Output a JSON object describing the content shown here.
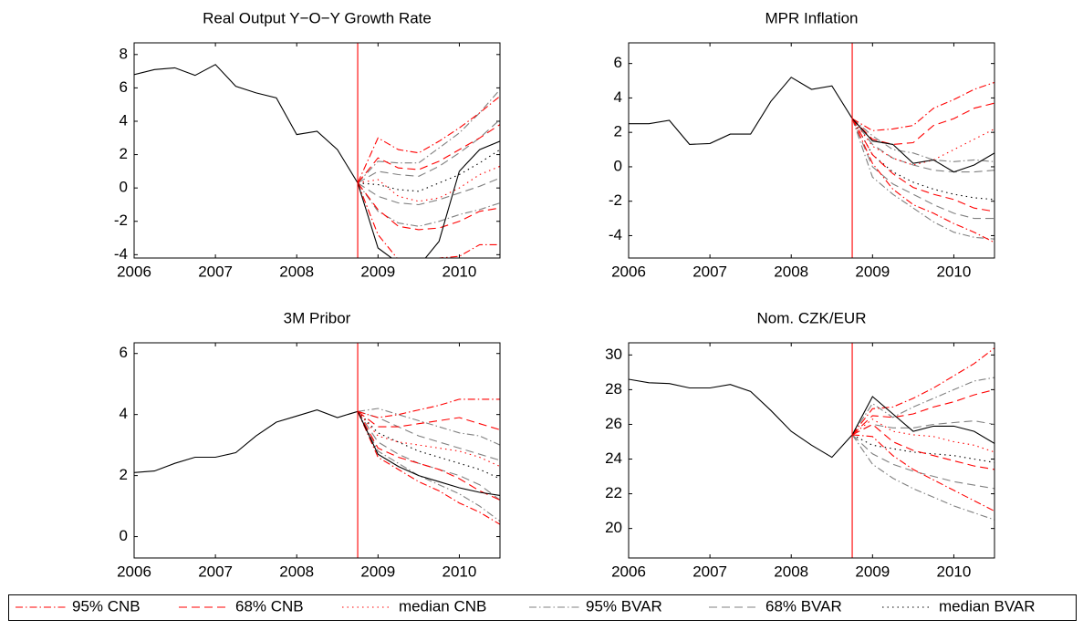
{
  "chart_data": [
    {
      "type": "line",
      "title": "Real Output Y−O−Y Growth Rate",
      "x": [
        2006,
        2006.25,
        2006.5,
        2006.75,
        2007,
        2007.25,
        2007.5,
        2007.75,
        2008,
        2008.25,
        2008.5,
        2008.75,
        2009,
        2009.25,
        2009.5,
        2009.75,
        2010,
        2010.25,
        2010.5
      ],
      "actual": [
        6.8,
        7.1,
        7.2,
        6.75,
        7.4,
        6.1,
        5.7,
        5.4,
        3.2,
        3.4,
        2.3,
        0.3,
        -3.6,
        -4.5,
        -4.7,
        -3.2,
        1.0,
        2.3,
        2.8
      ],
      "actual_color": "#000000",
      "forecast_start": 2008.75,
      "forecast_start_color": "#ff0000",
      "forecast_x": [
        2008.75,
        2009,
        2009.25,
        2009.5,
        2009.75,
        2010,
        2010.25,
        2010.5
      ],
      "forecasts": [
        {
          "upper": [
            0.3,
            3.0,
            2.3,
            2.1,
            2.8,
            3.6,
            4.5,
            5.5
          ],
          "lower": [
            0.3,
            -2.8,
            -4.3,
            -4.6,
            -4.2,
            -4.1,
            -3.4,
            -3.4
          ]
        },
        {
          "upper": [
            0.3,
            1.8,
            1.2,
            1.1,
            1.6,
            2.3,
            3.0,
            3.8
          ],
          "lower": [
            0.3,
            -1.3,
            -2.3,
            -2.5,
            -2.4,
            -2.0,
            -1.4,
            -1.2
          ]
        },
        {
          "values": [
            0.3,
            0.5,
            -0.5,
            -0.8,
            -0.6,
            0,
            0.8,
            1.3
          ]
        },
        {
          "upper": [
            0.3,
            1.6,
            1.5,
            1.5,
            2.4,
            3.3,
            4.5,
            5.9
          ],
          "lower": [
            0.3,
            -1.4,
            -2.1,
            -2.3,
            -2.0,
            -1.6,
            -1.3,
            -0.9
          ]
        },
        {
          "upper": [
            0.3,
            1.0,
            0.8,
            0.7,
            1.3,
            2.1,
            3.0,
            4.1
          ],
          "lower": [
            0.3,
            -0.5,
            -0.9,
            -1.0,
            -0.7,
            -0.3,
            0.1,
            0.6
          ]
        },
        {
          "values": [
            0.3,
            0.2,
            -0.1,
            -0.2,
            0.3,
            0.8,
            1.5,
            2.3
          ]
        }
      ],
      "xlim": [
        2006,
        2010.5
      ],
      "xticks": [
        2006,
        2007,
        2008,
        2009,
        2010
      ],
      "ylim": [
        -4.2,
        8.7
      ],
      "yticks": [
        -4,
        -2,
        0,
        2,
        4,
        6,
        8
      ]
    },
    {
      "type": "line",
      "title": "MPR Inflation",
      "x": [
        2006,
        2006.25,
        2006.5,
        2006.75,
        2007,
        2007.25,
        2007.5,
        2007.75,
        2008,
        2008.25,
        2008.5,
        2008.75,
        2009,
        2009.25,
        2009.5,
        2009.75,
        2010,
        2010.25,
        2010.5
      ],
      "actual": [
        2.5,
        2.5,
        2.7,
        1.3,
        1.35,
        1.9,
        1.9,
        3.8,
        5.2,
        4.5,
        4.7,
        2.8,
        1.5,
        1.3,
        0.2,
        0.4,
        -0.3,
        0.1,
        0.8
      ],
      "actual_color": "#000000",
      "forecast_start": 2008.75,
      "forecast_start_color": "#ff0000",
      "forecast_x": [
        2008.75,
        2009,
        2009.25,
        2009.5,
        2009.75,
        2010,
        2010.25,
        2010.5
      ],
      "forecasts": [
        {
          "upper": [
            2.8,
            2.1,
            2.2,
            2.4,
            3.4,
            3.9,
            4.5,
            4.9
          ],
          "lower": [
            2.8,
            0.2,
            -1.3,
            -2.2,
            -2.7,
            -3.3,
            -3.8,
            -4.4
          ]
        },
        {
          "upper": [
            2.8,
            1.6,
            1.3,
            1.4,
            2.4,
            2.8,
            3.4,
            3.7
          ],
          "lower": [
            2.8,
            0.7,
            -0.4,
            -1.2,
            -1.6,
            -1.9,
            -2.4,
            -2.6
          ]
        },
        {
          "values": [
            2.8,
            1.2,
            0.5,
            0.1,
            0.4,
            1.0,
            1.6,
            2.2
          ]
        },
        {
          "upper": [
            2.8,
            1.8,
            1.0,
            0.8,
            0.4,
            0.3,
            0.4,
            0.3
          ],
          "lower": [
            2.8,
            -0.6,
            -1.6,
            -2.4,
            -3.2,
            -3.8,
            -4.1,
            -4.2
          ]
        },
        {
          "upper": [
            2.8,
            1.3,
            0.5,
            0.1,
            -0.2,
            -0.3,
            -0.3,
            -0.2
          ],
          "lower": [
            2.8,
            0,
            -1.0,
            -1.6,
            -2.2,
            -2.7,
            -3.0,
            -3.0
          ]
        },
        {
          "values": [
            2.8,
            0.7,
            -0.3,
            -0.9,
            -1.3,
            -1.6,
            -1.8,
            -1.9
          ]
        }
      ],
      "xlim": [
        2006,
        2010.5
      ],
      "xticks": [
        2006,
        2007,
        2008,
        2009,
        2010
      ],
      "ylim": [
        -5.3,
        7.2
      ],
      "yticks": [
        -4,
        -2,
        0,
        2,
        4,
        6
      ]
    },
    {
      "type": "line",
      "title": "3M Pribor",
      "x": [
        2006,
        2006.25,
        2006.5,
        2006.75,
        2007,
        2007.25,
        2007.5,
        2007.75,
        2008,
        2008.25,
        2008.5,
        2008.75,
        2009,
        2009.25,
        2009.5,
        2009.75,
        2010,
        2010.25,
        2010.5
      ],
      "actual": [
        2.1,
        2.15,
        2.4,
        2.6,
        2.6,
        2.75,
        3.3,
        3.75,
        3.95,
        4.15,
        3.9,
        4.1,
        2.7,
        2.3,
        2.0,
        1.8,
        1.6,
        1.45,
        1.35
      ],
      "actual_color": "#000000",
      "forecast_start": 2008.75,
      "forecast_start_color": "#ff0000",
      "forecast_x": [
        2008.75,
        2009,
        2009.25,
        2009.5,
        2009.75,
        2010,
        2010.25,
        2010.5
      ],
      "forecasts": [
        {
          "upper": [
            4.1,
            3.9,
            4.0,
            4.15,
            4.3,
            4.5,
            4.5,
            4.5
          ],
          "lower": [
            4.1,
            2.6,
            2.2,
            1.8,
            1.5,
            1.1,
            0.8,
            0.4
          ]
        },
        {
          "upper": [
            4.1,
            3.6,
            3.6,
            3.7,
            3.8,
            3.9,
            3.7,
            3.5
          ],
          "lower": [
            4.1,
            2.9,
            2.6,
            2.4,
            2.2,
            1.9,
            1.5,
            1.2
          ]
        },
        {
          "values": [
            4.1,
            3.3,
            3.1,
            3.0,
            2.9,
            2.8,
            2.6,
            2.3
          ]
        },
        {
          "upper": [
            4.1,
            4.2,
            4.0,
            3.8,
            3.6,
            3.4,
            3.3,
            3.0
          ],
          "lower": [
            4.1,
            2.8,
            2.4,
            2.0,
            1.7,
            1.4,
            1.0,
            0.5
          ]
        },
        {
          "upper": [
            4.1,
            3.9,
            3.6,
            3.3,
            3.1,
            2.9,
            2.7,
            2.5
          ],
          "lower": [
            4.1,
            3.1,
            2.7,
            2.4,
            2.2,
            2.0,
            1.7,
            1.2
          ]
        },
        {
          "values": [
            4.1,
            3.4,
            3.1,
            2.8,
            2.6,
            2.4,
            2.2,
            1.9
          ]
        }
      ],
      "xlim": [
        2006,
        2010.5
      ],
      "xticks": [
        2006,
        2007,
        2008,
        2009,
        2010
      ],
      "ylim": [
        -0.7,
        6.35
      ],
      "yticks": [
        0,
        2,
        4,
        6
      ]
    },
    {
      "type": "line",
      "title": "Nom. CZK/EUR",
      "x": [
        2006,
        2006.25,
        2006.5,
        2006.75,
        2007,
        2007.25,
        2007.5,
        2007.75,
        2008,
        2008.25,
        2008.5,
        2008.75,
        2009,
        2009.25,
        2009.5,
        2009.75,
        2010,
        2010.25,
        2010.5
      ],
      "actual": [
        28.6,
        28.4,
        28.35,
        28.1,
        28.1,
        28.3,
        27.9,
        26.8,
        25.6,
        24.8,
        24.1,
        25.4,
        27.6,
        26.6,
        25.6,
        25.9,
        25.9,
        25.6,
        24.9
      ],
      "actual_color": "#000000",
      "forecast_start": 2008.75,
      "forecast_start_color": "#ff0000",
      "forecast_x": [
        2008.75,
        2009,
        2009.25,
        2009.5,
        2009.75,
        2010,
        2010.25,
        2010.5
      ],
      "forecasts": [
        {
          "upper": [
            25.4,
            26.9,
            27.0,
            27.5,
            28.1,
            28.8,
            29.5,
            30.4
          ],
          "lower": [
            25.4,
            25.3,
            24.2,
            23.4,
            22.8,
            22.2,
            21.6,
            21.0
          ]
        },
        {
          "upper": [
            25.4,
            26.5,
            26.4,
            26.6,
            27.0,
            27.3,
            27.7,
            28.0
          ],
          "lower": [
            25.4,
            26.0,
            25.0,
            24.5,
            24.2,
            23.9,
            23.6,
            23.4
          ]
        },
        {
          "values": [
            25.4,
            26.3,
            25.6,
            25.4,
            25.3,
            25.0,
            24.8,
            24.4
          ]
        },
        {
          "upper": [
            25.4,
            27.2,
            26.4,
            27.0,
            27.5,
            28.0,
            28.5,
            28.7
          ],
          "lower": [
            25.4,
            23.7,
            22.9,
            22.3,
            21.8,
            21.3,
            20.9,
            20.5
          ]
        },
        {
          "upper": [
            25.4,
            26.0,
            25.8,
            25.8,
            26.0,
            26.1,
            26.2,
            26.0
          ],
          "lower": [
            25.4,
            24.3,
            23.7,
            23.3,
            23.0,
            22.7,
            22.5,
            22.3
          ]
        },
        {
          "values": [
            25.4,
            24.8,
            24.6,
            24.4,
            24.3,
            24.2,
            24.0,
            23.8
          ]
        }
      ],
      "xlim": [
        2006,
        2010.5
      ],
      "xticks": [
        2006,
        2007,
        2008,
        2009,
        2010
      ],
      "ylim": [
        18.3,
        30.7
      ],
      "yticks": [
        20,
        22,
        24,
        26,
        28,
        30
      ]
    }
  ],
  "legend": [
    {
      "name": "95% CNB",
      "color": "#ff0000",
      "dash": "dashdot"
    },
    {
      "name": "68% CNB",
      "color": "#ff0000",
      "dash": "dashed"
    },
    {
      "name": "median CNB",
      "color": "#ff0000",
      "dash": "dotted"
    },
    {
      "name": "95% BVAR",
      "color": "#808080",
      "dash": "dashdot"
    },
    {
      "name": "68% BVAR",
      "color": "#808080",
      "dash": "dashed"
    },
    {
      "name": "median BVAR",
      "color": "#000000",
      "dash": "dotted"
    }
  ]
}
